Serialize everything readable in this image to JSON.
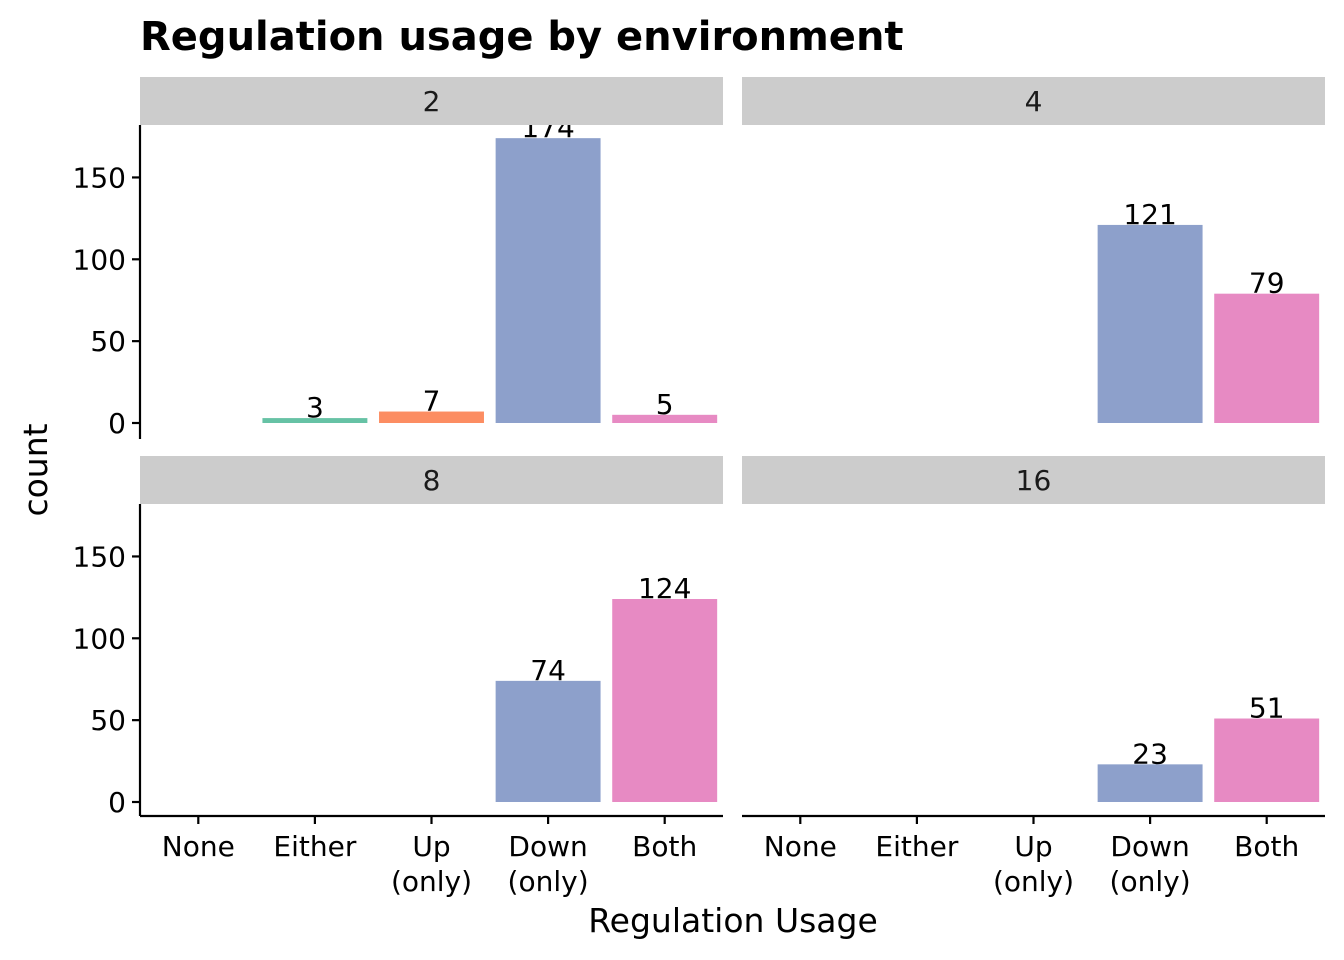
{
  "chart_data": {
    "type": "bar",
    "title": "Regulation usage by environment",
    "xlabel": "Regulation Usage",
    "ylabel": "count",
    "ylim": [
      0,
      182
    ],
    "yticks": [
      0,
      50,
      100,
      150
    ],
    "grid": false,
    "legend": "none",
    "categories": [
      "None",
      "Either",
      "Up\n(only)",
      "Down\n(only)",
      "Both"
    ],
    "category_colors": [
      "#66c2a5",
      "#66c2a5",
      "#fc8d62",
      "#8da0cb",
      "#e78ac3"
    ],
    "facets": [
      {
        "label": "2",
        "values": [
          0,
          3,
          7,
          174,
          5
        ]
      },
      {
        "label": "4",
        "values": [
          0,
          0,
          0,
          121,
          79
        ]
      },
      {
        "label": "8",
        "values": [
          0,
          0,
          0,
          74,
          124
        ]
      },
      {
        "label": "16",
        "values": [
          0,
          0,
          0,
          23,
          51
        ]
      }
    ]
  }
}
